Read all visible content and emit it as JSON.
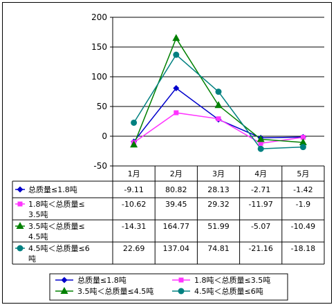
{
  "chart_data": {
    "type": "line",
    "categories": [
      "1月",
      "2月",
      "3月",
      "4月",
      "5月"
    ],
    "ylim": [
      -50,
      200
    ],
    "yticks": [
      "200",
      "150",
      "100",
      "50",
      "0",
      "-50"
    ],
    "grid": true,
    "legend_position": "bottom",
    "series": [
      {
        "name": "总质量≤1.8吨",
        "table_label": [
          "总质量≤1.8吨"
        ],
        "color": "#0000cc",
        "marker": "diamond",
        "values": [
          -9.11,
          80.82,
          28.13,
          -2.71,
          -1.42
        ],
        "labels": [
          "-9.11",
          "80.82",
          "28.13",
          "-2.71",
          "-1.42"
        ]
      },
      {
        "name": "1.8吨＜总质量≤3.5吨",
        "table_label": [
          "1.8吨＜总质量≤",
          "3.5吨"
        ],
        "color": "#ff33ff",
        "marker": "square",
        "values": [
          -10.62,
          39.45,
          29.32,
          -11.97,
          -1.9
        ],
        "labels": [
          "-10.62",
          "39.45",
          "29.32",
          "-11.97",
          "-1.9"
        ]
      },
      {
        "name": "3.5吨＜总质量≤4.5吨",
        "table_label": [
          "3.5吨＜总质量≤",
          "4.5吨"
        ],
        "color": "#008000",
        "marker": "triangle",
        "values": [
          -14.31,
          164.77,
          51.99,
          -5.07,
          -10.49
        ],
        "labels": [
          "-14.31",
          "164.77",
          "51.99",
          "-5.07",
          "-10.49"
        ]
      },
      {
        "name": "4.5吨＜总质量≤6吨",
        "table_label": [
          "4.5吨＜总质量≤6",
          "吨"
        ],
        "color": "#008080",
        "marker": "circle",
        "values": [
          22.69,
          137.04,
          74.81,
          -21.16,
          -18.18
        ],
        "labels": [
          "22.69",
          "137.04",
          "74.81",
          "-21.16",
          "-18.18"
        ]
      }
    ]
  }
}
